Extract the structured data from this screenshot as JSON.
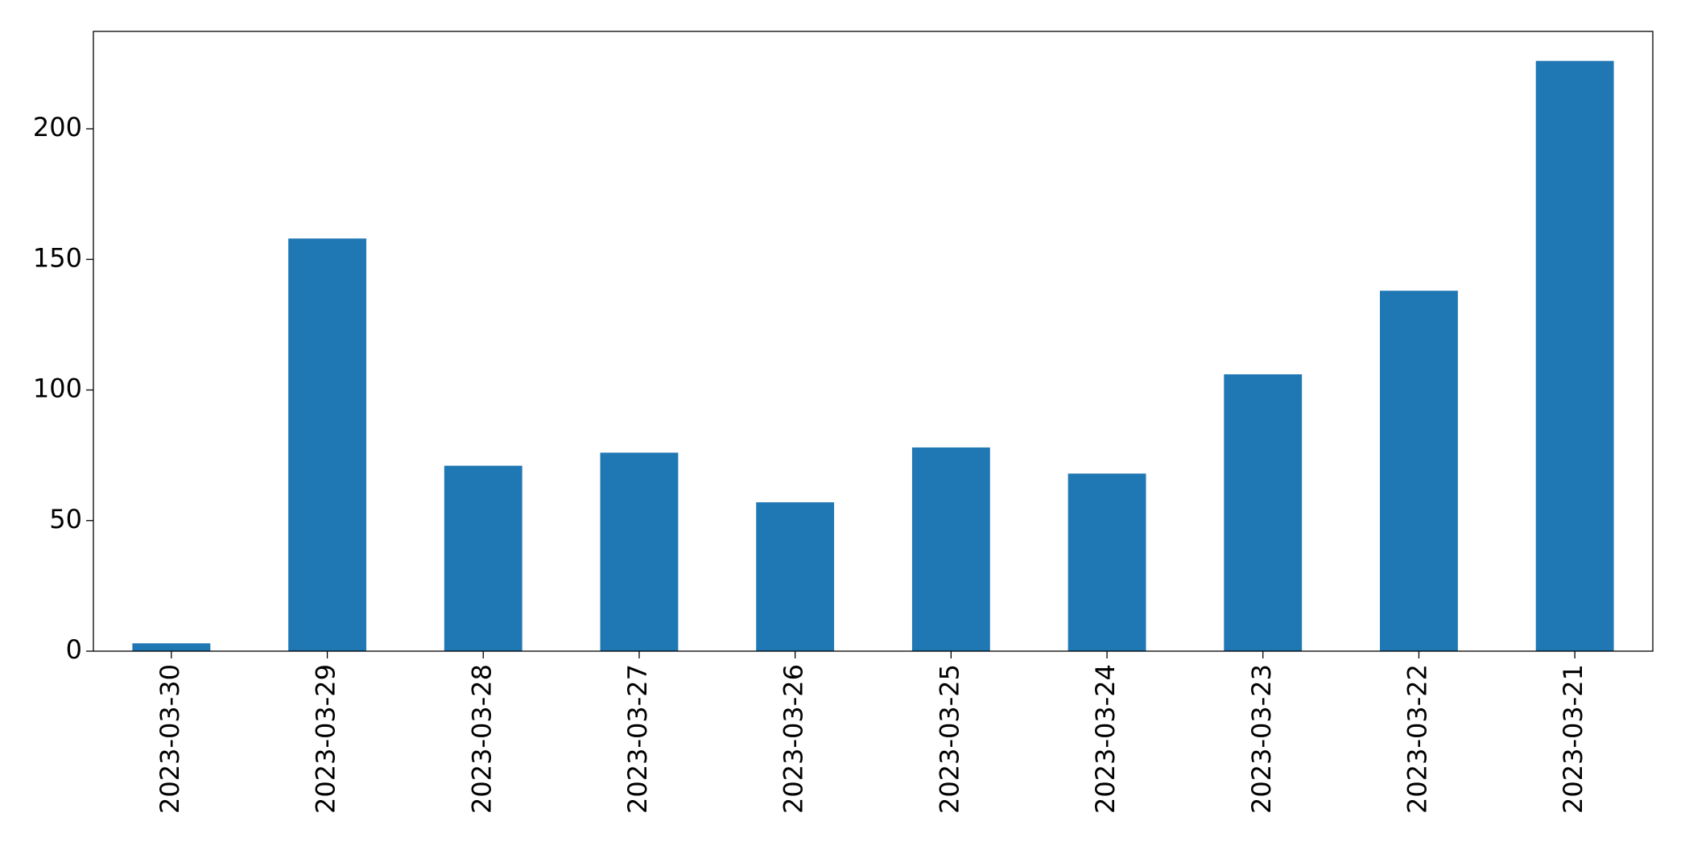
{
  "chart_data": {
    "type": "bar",
    "categories": [
      "2023-03-30",
      "2023-03-29",
      "2023-03-28",
      "2023-03-27",
      "2023-03-26",
      "2023-03-25",
      "2023-03-24",
      "2023-03-23",
      "2023-03-22",
      "2023-03-21"
    ],
    "values": [
      3,
      158,
      71,
      76,
      57,
      78,
      68,
      106,
      138,
      226
    ],
    "color": "#1f77b4",
    "ylim": [
      0,
      237.3
    ],
    "yticks": [
      0,
      50,
      100,
      150,
      200
    ],
    "grid": false
  }
}
